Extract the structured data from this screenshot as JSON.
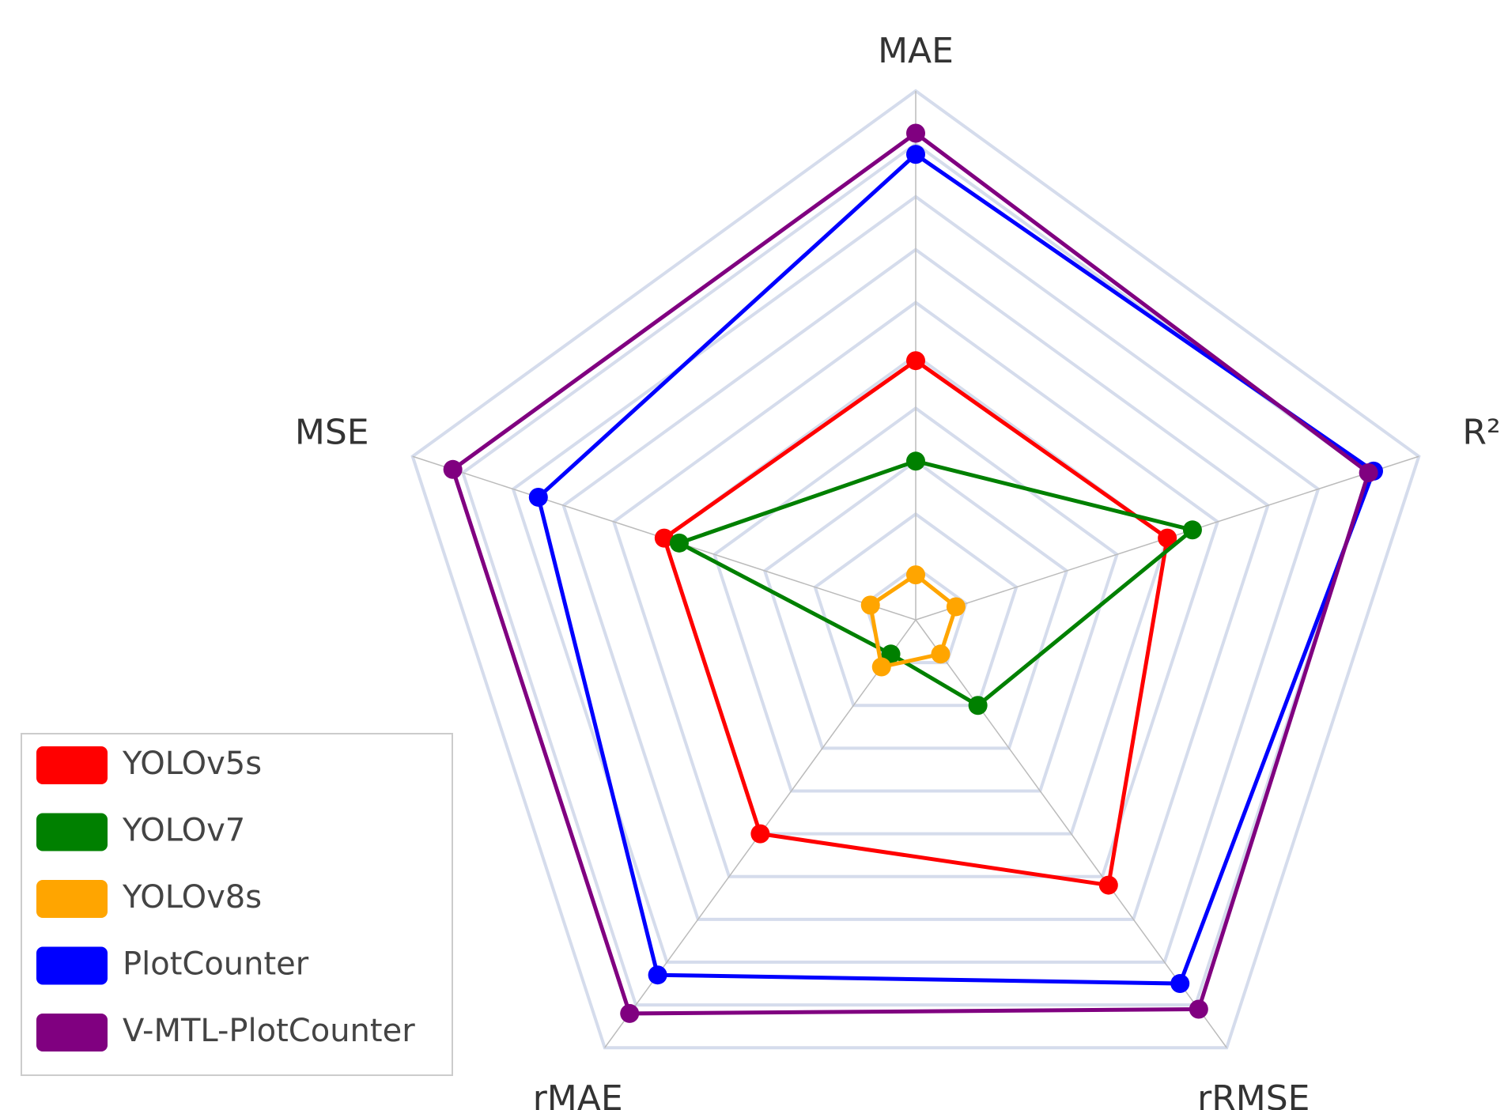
{
  "chart_data": {
    "type": "radar",
    "axes": [
      "MAE",
      "R²",
      "rRMSE",
      "rMAE",
      "MSE"
    ],
    "rlim": [
      0,
      1
    ],
    "series": [
      {
        "name": "YOLOv5s",
        "color": "#ff0000",
        "values": [
          0.49,
          0.5,
          0.62,
          0.5,
          0.5
        ]
      },
      {
        "name": "YOLOv7",
        "color": "#008000",
        "values": [
          0.3,
          0.55,
          0.2,
          0.08,
          0.47
        ]
      },
      {
        "name": "YOLOv8s",
        "color": "#ffa500",
        "values": [
          0.085,
          0.08,
          0.08,
          0.11,
          0.09
        ]
      },
      {
        "name": "PlotCounter",
        "color": "#0000ff",
        "values": [
          0.88,
          0.91,
          0.85,
          0.83,
          0.75
        ]
      },
      {
        "name": "V-MTL-PlotCounter",
        "color": "#800080",
        "values": [
          0.92,
          0.9,
          0.91,
          0.92,
          0.92
        ]
      }
    ]
  }
}
